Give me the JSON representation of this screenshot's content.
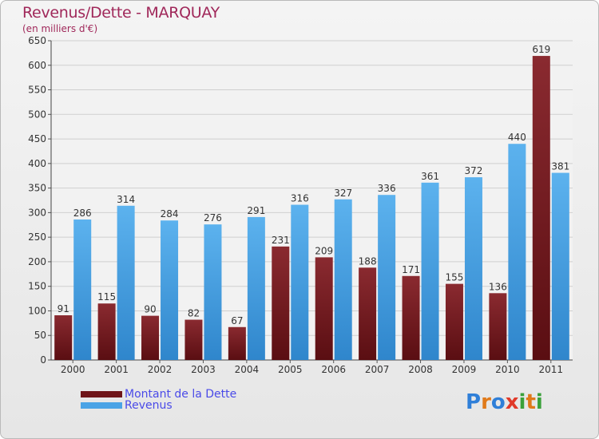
{
  "chart_data": {
    "type": "bar",
    "title": "Revenus/Dette - MARQUAY",
    "subtitle": "(en milliers d'€)",
    "categories": [
      "2000",
      "2001",
      "2002",
      "2003",
      "2004",
      "2005",
      "2006",
      "2007",
      "2008",
      "2009",
      "2010",
      "2011"
    ],
    "series": [
      {
        "name": "Montant de la Dette",
        "color": "#7a1f24",
        "values": [
          91,
          115,
          90,
          82,
          67,
          231,
          209,
          188,
          171,
          155,
          136,
          619
        ]
      },
      {
        "name": "Revenus",
        "color": "#4aa3e6",
        "values": [
          286,
          314,
          284,
          276,
          291,
          316,
          327,
          336,
          361,
          372,
          440,
          381
        ]
      }
    ],
    "ylim": [
      0,
      650
    ],
    "yticks": [
      0,
      50,
      100,
      150,
      200,
      250,
      300,
      350,
      400,
      450,
      500,
      550,
      600,
      650
    ],
    "grid": true,
    "legend_position": "bottom-left"
  },
  "logo": {
    "letters": [
      "P",
      "r",
      "o",
      "x",
      "i",
      "t",
      "i"
    ],
    "colors": [
      "#2f7fd8",
      "#e07a1a",
      "#2f7fd8",
      "#e03a2a",
      "#3aa13a",
      "#e07a1a",
      "#3aa13a"
    ]
  }
}
